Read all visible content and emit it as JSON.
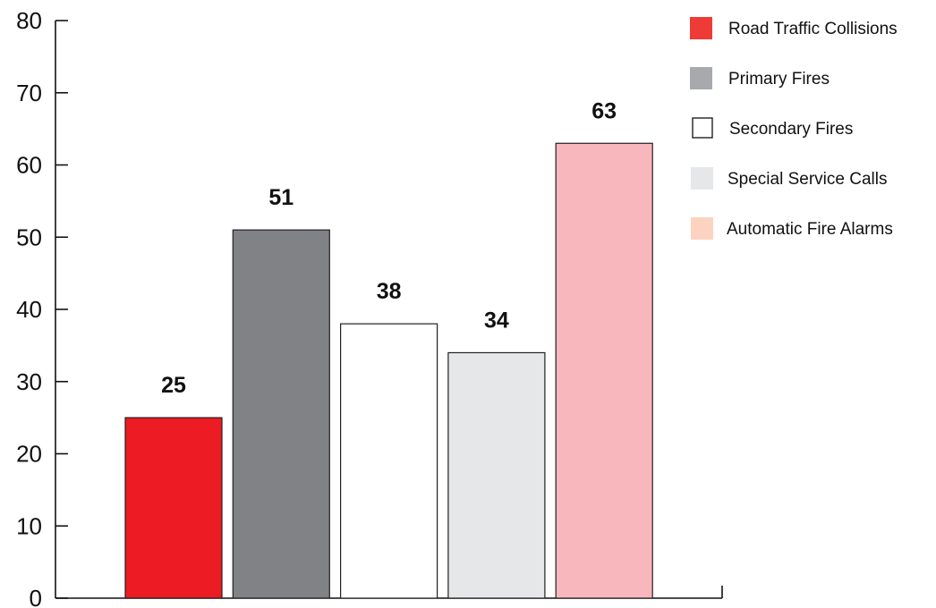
{
  "chart_data": {
    "type": "bar",
    "title": "",
    "xlabel": "",
    "ylabel": "",
    "ylim": [
      0,
      80
    ],
    "yticks": [
      0,
      10,
      20,
      30,
      40,
      50,
      60,
      70,
      80
    ],
    "grid": false,
    "legend_position": "top-right",
    "categories": [
      "Road Traffic Collisions",
      "Primary Fires",
      "Secondary Fires",
      "Special Service Calls",
      "Automatic Fire Alarms"
    ],
    "values": [
      25,
      51,
      38,
      34,
      63
    ],
    "value_labels": [
      "25",
      "51",
      "38",
      "34",
      "63"
    ],
    "bar_colors": [
      "#ed1c24",
      "#808285",
      "#ffffff",
      "#e6e7e8",
      "#f7b7bd"
    ],
    "legend": {
      "entries": [
        {
          "label": "Road Traffic Collisions",
          "color": "#ef3b36"
        },
        {
          "label": "Primary Fires",
          "color": "#a7a9ac"
        },
        {
          "label": "Secondary Fires",
          "color": "#ffffff"
        },
        {
          "label": "Special Service Calls",
          "color": "#e6e7e8"
        },
        {
          "label": "Automatic Fire Alarms",
          "color": "#fcd3c1"
        }
      ]
    }
  }
}
